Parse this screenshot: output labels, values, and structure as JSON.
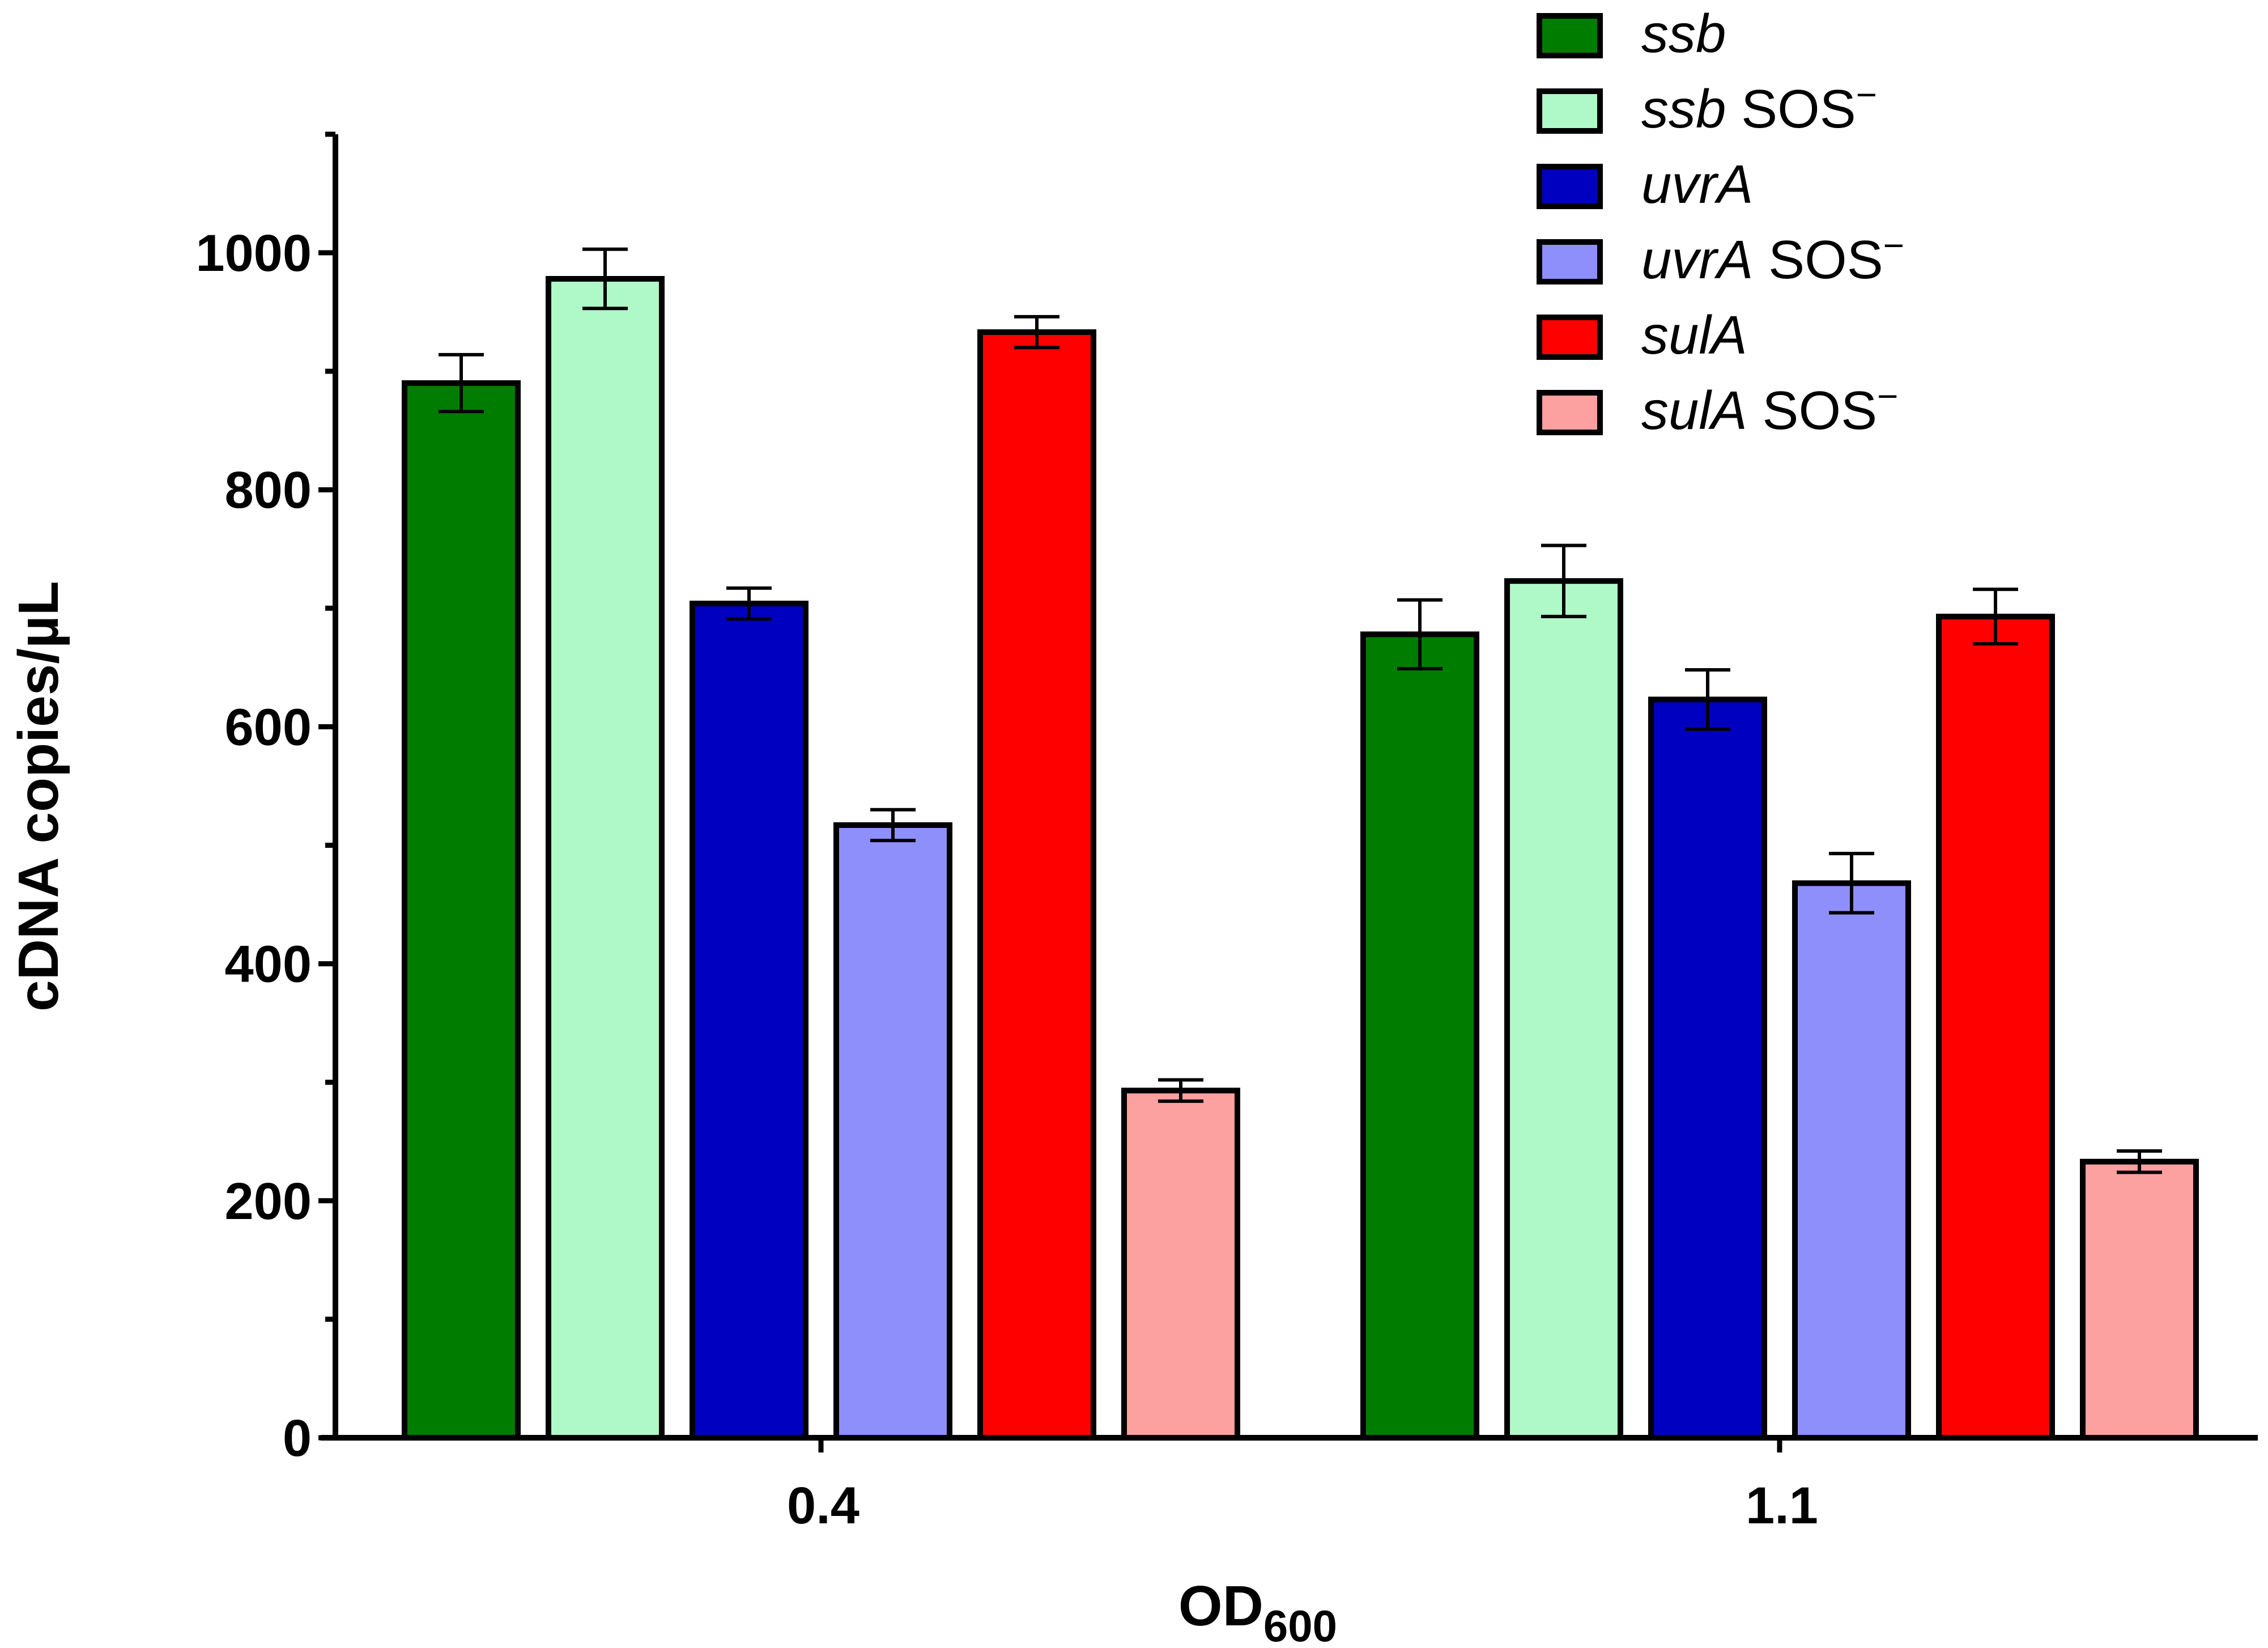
{
  "chart_data": {
    "type": "bar",
    "xlabel": "OD",
    "xlabel_subscript": "600",
    "ylabel": "cDNA copies/µL",
    "ylim": [
      0,
      1100
    ],
    "yticks": [
      "0",
      "200",
      "400",
      "600",
      "800",
      "1000"
    ],
    "categories": [
      "0.4",
      "1.1"
    ],
    "legend_position": "top-right",
    "series": [
      {
        "name_italic": "ssb",
        "name_suffix": "",
        "name_sup": "",
        "color": "#007d00",
        "values": [
          890,
          678
        ],
        "errors": [
          24,
          29
        ]
      },
      {
        "name_italic": "ssb",
        "name_suffix": " SOS",
        "name_sup": "−",
        "color": "#aff8c8",
        "values": [
          978,
          723
        ],
        "errors": [
          25,
          30
        ]
      },
      {
        "name_italic": "uvrA",
        "name_suffix": "",
        "name_sup": "",
        "color": "#0000c0",
        "values": [
          704,
          623
        ],
        "errors": [
          13,
          25
        ]
      },
      {
        "name_italic": "uvrA",
        "name_suffix": " SOS",
        "name_sup": "−",
        "color": "#8f8ffb",
        "values": [
          517,
          468
        ],
        "errors": [
          13,
          25
        ]
      },
      {
        "name_italic": "sulA",
        "name_suffix": "",
        "name_sup": "",
        "color": "#ff0000",
        "values": [
          933,
          693
        ],
        "errors": [
          13,
          23
        ]
      },
      {
        "name_italic": "sulA",
        "name_suffix": " SOS",
        "name_sup": "−",
        "color": "#fda0a0",
        "values": [
          293,
          233
        ],
        "errors": [
          9,
          9
        ]
      }
    ]
  }
}
